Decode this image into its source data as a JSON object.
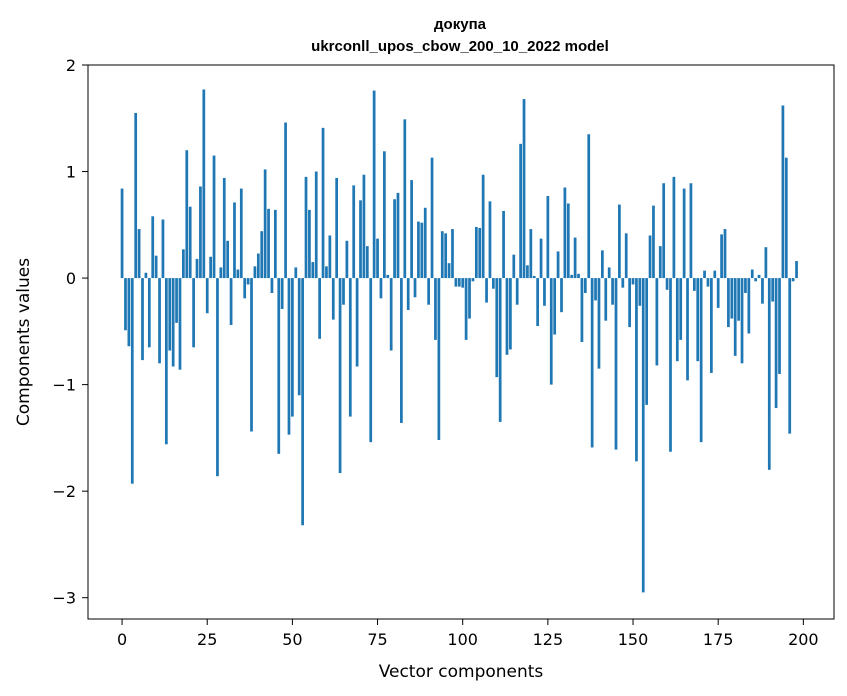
{
  "chart_data": {
    "type": "bar",
    "title_line1": "докупа",
    "title_line2": "ukrconll_upos_cbow_200_10_2022 model",
    "xlabel": "Vector components",
    "ylabel": "Components values",
    "xlim": [
      -10,
      209
    ],
    "ylim": [
      -3.2,
      2.0
    ],
    "xticks": [
      0,
      25,
      50,
      75,
      100,
      125,
      150,
      175,
      200
    ],
    "yticks": [
      -3,
      -2,
      -1,
      0,
      1,
      2
    ],
    "ytick_labels": [
      "−3",
      "−2",
      "−1",
      "0",
      "1",
      "2"
    ],
    "xtick_labels": [
      "0",
      "25",
      "50",
      "75",
      "100",
      "125",
      "150",
      "175",
      "200"
    ],
    "grid": false,
    "bar_color": "#1f77b4",
    "values": [
      0.84,
      -0.49,
      -0.64,
      -1.93,
      1.55,
      0.46,
      -0.77,
      0.05,
      -0.65,
      0.58,
      0.21,
      -0.8,
      0.55,
      -1.56,
      -0.68,
      -0.83,
      -0.42,
      -0.86,
      0.27,
      1.2,
      0.67,
      -0.65,
      0.18,
      0.86,
      1.77,
      -0.33,
      0.2,
      1.15,
      -1.86,
      0.1,
      0.94,
      0.35,
      -0.44,
      0.71,
      0.08,
      0.84,
      -0.19,
      -0.06,
      -1.44,
      0.11,
      0.23,
      0.44,
      1.02,
      0.65,
      -0.14,
      0.64,
      -1.65,
      -0.29,
      1.46,
      -1.47,
      -1.3,
      0.1,
      -1.1,
      -2.32,
      0.95,
      0.64,
      0.15,
      1.0,
      -0.57,
      1.41,
      0.11,
      0.4,
      -0.39,
      0.94,
      -1.83,
      -0.25,
      0.35,
      -1.3,
      0.87,
      -0.83,
      0.73,
      0.97,
      0.3,
      -1.54,
      1.76,
      0.37,
      -0.19,
      1.19,
      0.03,
      -0.68,
      0.74,
      0.8,
      -1.36,
      1.49,
      -0.3,
      0.92,
      -0.18,
      0.53,
      0.52,
      0.66,
      -0.25,
      1.13,
      -0.58,
      -1.52,
      0.44,
      0.42,
      0.14,
      0.46,
      -0.08,
      -0.08,
      -0.09,
      -0.58,
      -0.38,
      -0.03,
      0.48,
      0.47,
      0.97,
      -0.23,
      0.72,
      -0.1,
      -0.93,
      -1.35,
      0.63,
      -0.72,
      -0.67,
      0.22,
      -0.25,
      1.26,
      1.68,
      0.12,
      0.46,
      0.02,
      -0.45,
      0.37,
      -0.26,
      0.77,
      -1.0,
      -0.53,
      0.25,
      -0.32,
      0.85,
      0.7,
      0.03,
      0.38,
      0.04,
      -0.6,
      -0.14,
      1.35,
      -1.59,
      -0.21,
      -0.85,
      0.26,
      -0.4,
      0.1,
      -0.25,
      -1.61,
      0.69,
      -0.09,
      0.42,
      -0.46,
      -0.06,
      -1.72,
      -0.26,
      -2.95,
      -1.19,
      0.4,
      0.68,
      -0.82,
      0.3,
      0.89,
      -0.11,
      -1.63,
      0.95,
      -0.78,
      -0.58,
      0.84,
      -0.96,
      0.89,
      -0.12,
      -0.78,
      -1.54,
      0.07,
      -0.08,
      -0.89,
      0.07,
      -0.28,
      0.41,
      0.46,
      -0.46,
      -0.38,
      -0.73,
      -0.4,
      -0.8,
      -0.14,
      -0.52,
      0.08,
      -0.03,
      0.03,
      -0.24,
      0.29,
      -1.8,
      -0.22,
      -1.22,
      -0.9,
      1.62,
      1.13,
      -1.46,
      -0.03,
      0.16
    ]
  }
}
